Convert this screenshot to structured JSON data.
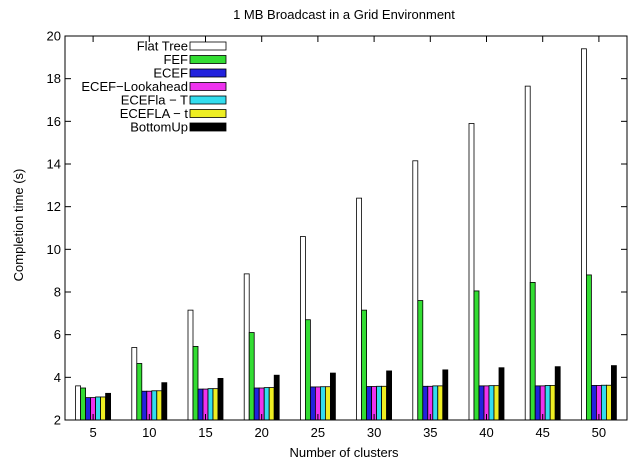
{
  "chart_data": {
    "type": "bar",
    "title": "1 MB Broadcast in a Grid Environment",
    "xlabel": "Number of clusters",
    "ylabel": "Completion time (s)",
    "ylim": [
      2,
      20
    ],
    "yticks": [
      2,
      4,
      6,
      8,
      10,
      12,
      14,
      16,
      18,
      20
    ],
    "categories": [
      "5",
      "10",
      "15",
      "20",
      "25",
      "30",
      "35",
      "40",
      "45",
      "50"
    ],
    "grid": false,
    "legend_position": "top-left",
    "series": [
      {
        "name": "Flat Tree",
        "color": "#ffffff",
        "values": [
          3.6,
          5.4,
          7.15,
          8.85,
          10.6,
          12.4,
          14.15,
          15.9,
          17.65,
          19.4
        ]
      },
      {
        "name": "FEF",
        "color": "#33dd33",
        "values": [
          3.5,
          4.65,
          5.45,
          6.1,
          6.7,
          7.15,
          7.6,
          8.05,
          8.45,
          8.8
        ]
      },
      {
        "name": "ECEF",
        "color": "#2222dd",
        "values": [
          3.05,
          3.35,
          3.45,
          3.5,
          3.55,
          3.57,
          3.58,
          3.6,
          3.6,
          3.62
        ]
      },
      {
        "name": "ECEF−Lookahead",
        "color": "#ee33ee",
        "values": [
          3.05,
          3.35,
          3.45,
          3.5,
          3.55,
          3.57,
          3.58,
          3.6,
          3.6,
          3.62
        ]
      },
      {
        "name": "ECEFla − T",
        "color": "#33ddee",
        "values": [
          3.08,
          3.37,
          3.47,
          3.52,
          3.56,
          3.58,
          3.6,
          3.61,
          3.62,
          3.63
        ]
      },
      {
        "name": "ECEFLA − t",
        "color": "#eeee22",
        "values": [
          3.08,
          3.37,
          3.47,
          3.52,
          3.56,
          3.58,
          3.6,
          3.61,
          3.62,
          3.63
        ]
      },
      {
        "name": "BottomUp",
        "color": "#000000",
        "values": [
          3.25,
          3.75,
          3.95,
          4.1,
          4.2,
          4.3,
          4.35,
          4.45,
          4.5,
          4.55
        ]
      }
    ]
  }
}
